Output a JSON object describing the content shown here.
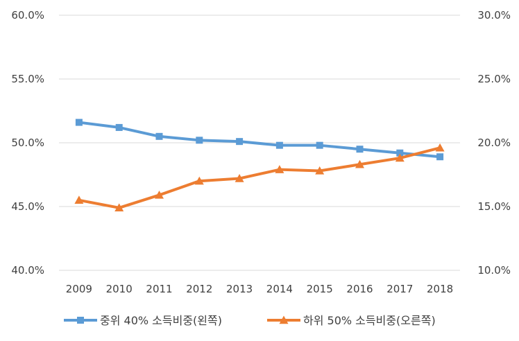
{
  "chart_data": {
    "type": "line",
    "title": "",
    "categories": [
      "2009",
      "2010",
      "2011",
      "2012",
      "2013",
      "2014",
      "2015",
      "2016",
      "2017",
      "2018"
    ],
    "y_left": {
      "ylim": [
        40,
        60
      ],
      "ticks": [
        60,
        55,
        50,
        45,
        40
      ],
      "tick_labels": [
        "60.0%",
        "55.0%",
        "50.0%",
        "45.0%",
        "40.0%"
      ]
    },
    "y_right": {
      "ylim": [
        10,
        30
      ],
      "ticks": [
        30,
        25,
        20,
        15,
        10
      ],
      "tick_labels": [
        "30.0%",
        "25.0%",
        "20.0%",
        "15.0%",
        "10.0%"
      ]
    },
    "series": [
      {
        "name": "중위 40% 소득비중(왼쪽)",
        "axis": "left",
        "color": "#5b9bd5",
        "marker": "square",
        "values": [
          51.6,
          51.2,
          50.5,
          50.2,
          50.1,
          49.8,
          49.8,
          49.5,
          49.2,
          48.9
        ]
      },
      {
        "name": "하위 50% 소득비중(오른쪽)",
        "axis": "right",
        "color": "#ed7d31",
        "marker": "triangle",
        "values": [
          15.5,
          14.9,
          15.9,
          17.0,
          17.2,
          17.9,
          17.8,
          18.3,
          18.8,
          19.6
        ]
      }
    ],
    "grid": true,
    "legend": "bottom"
  }
}
